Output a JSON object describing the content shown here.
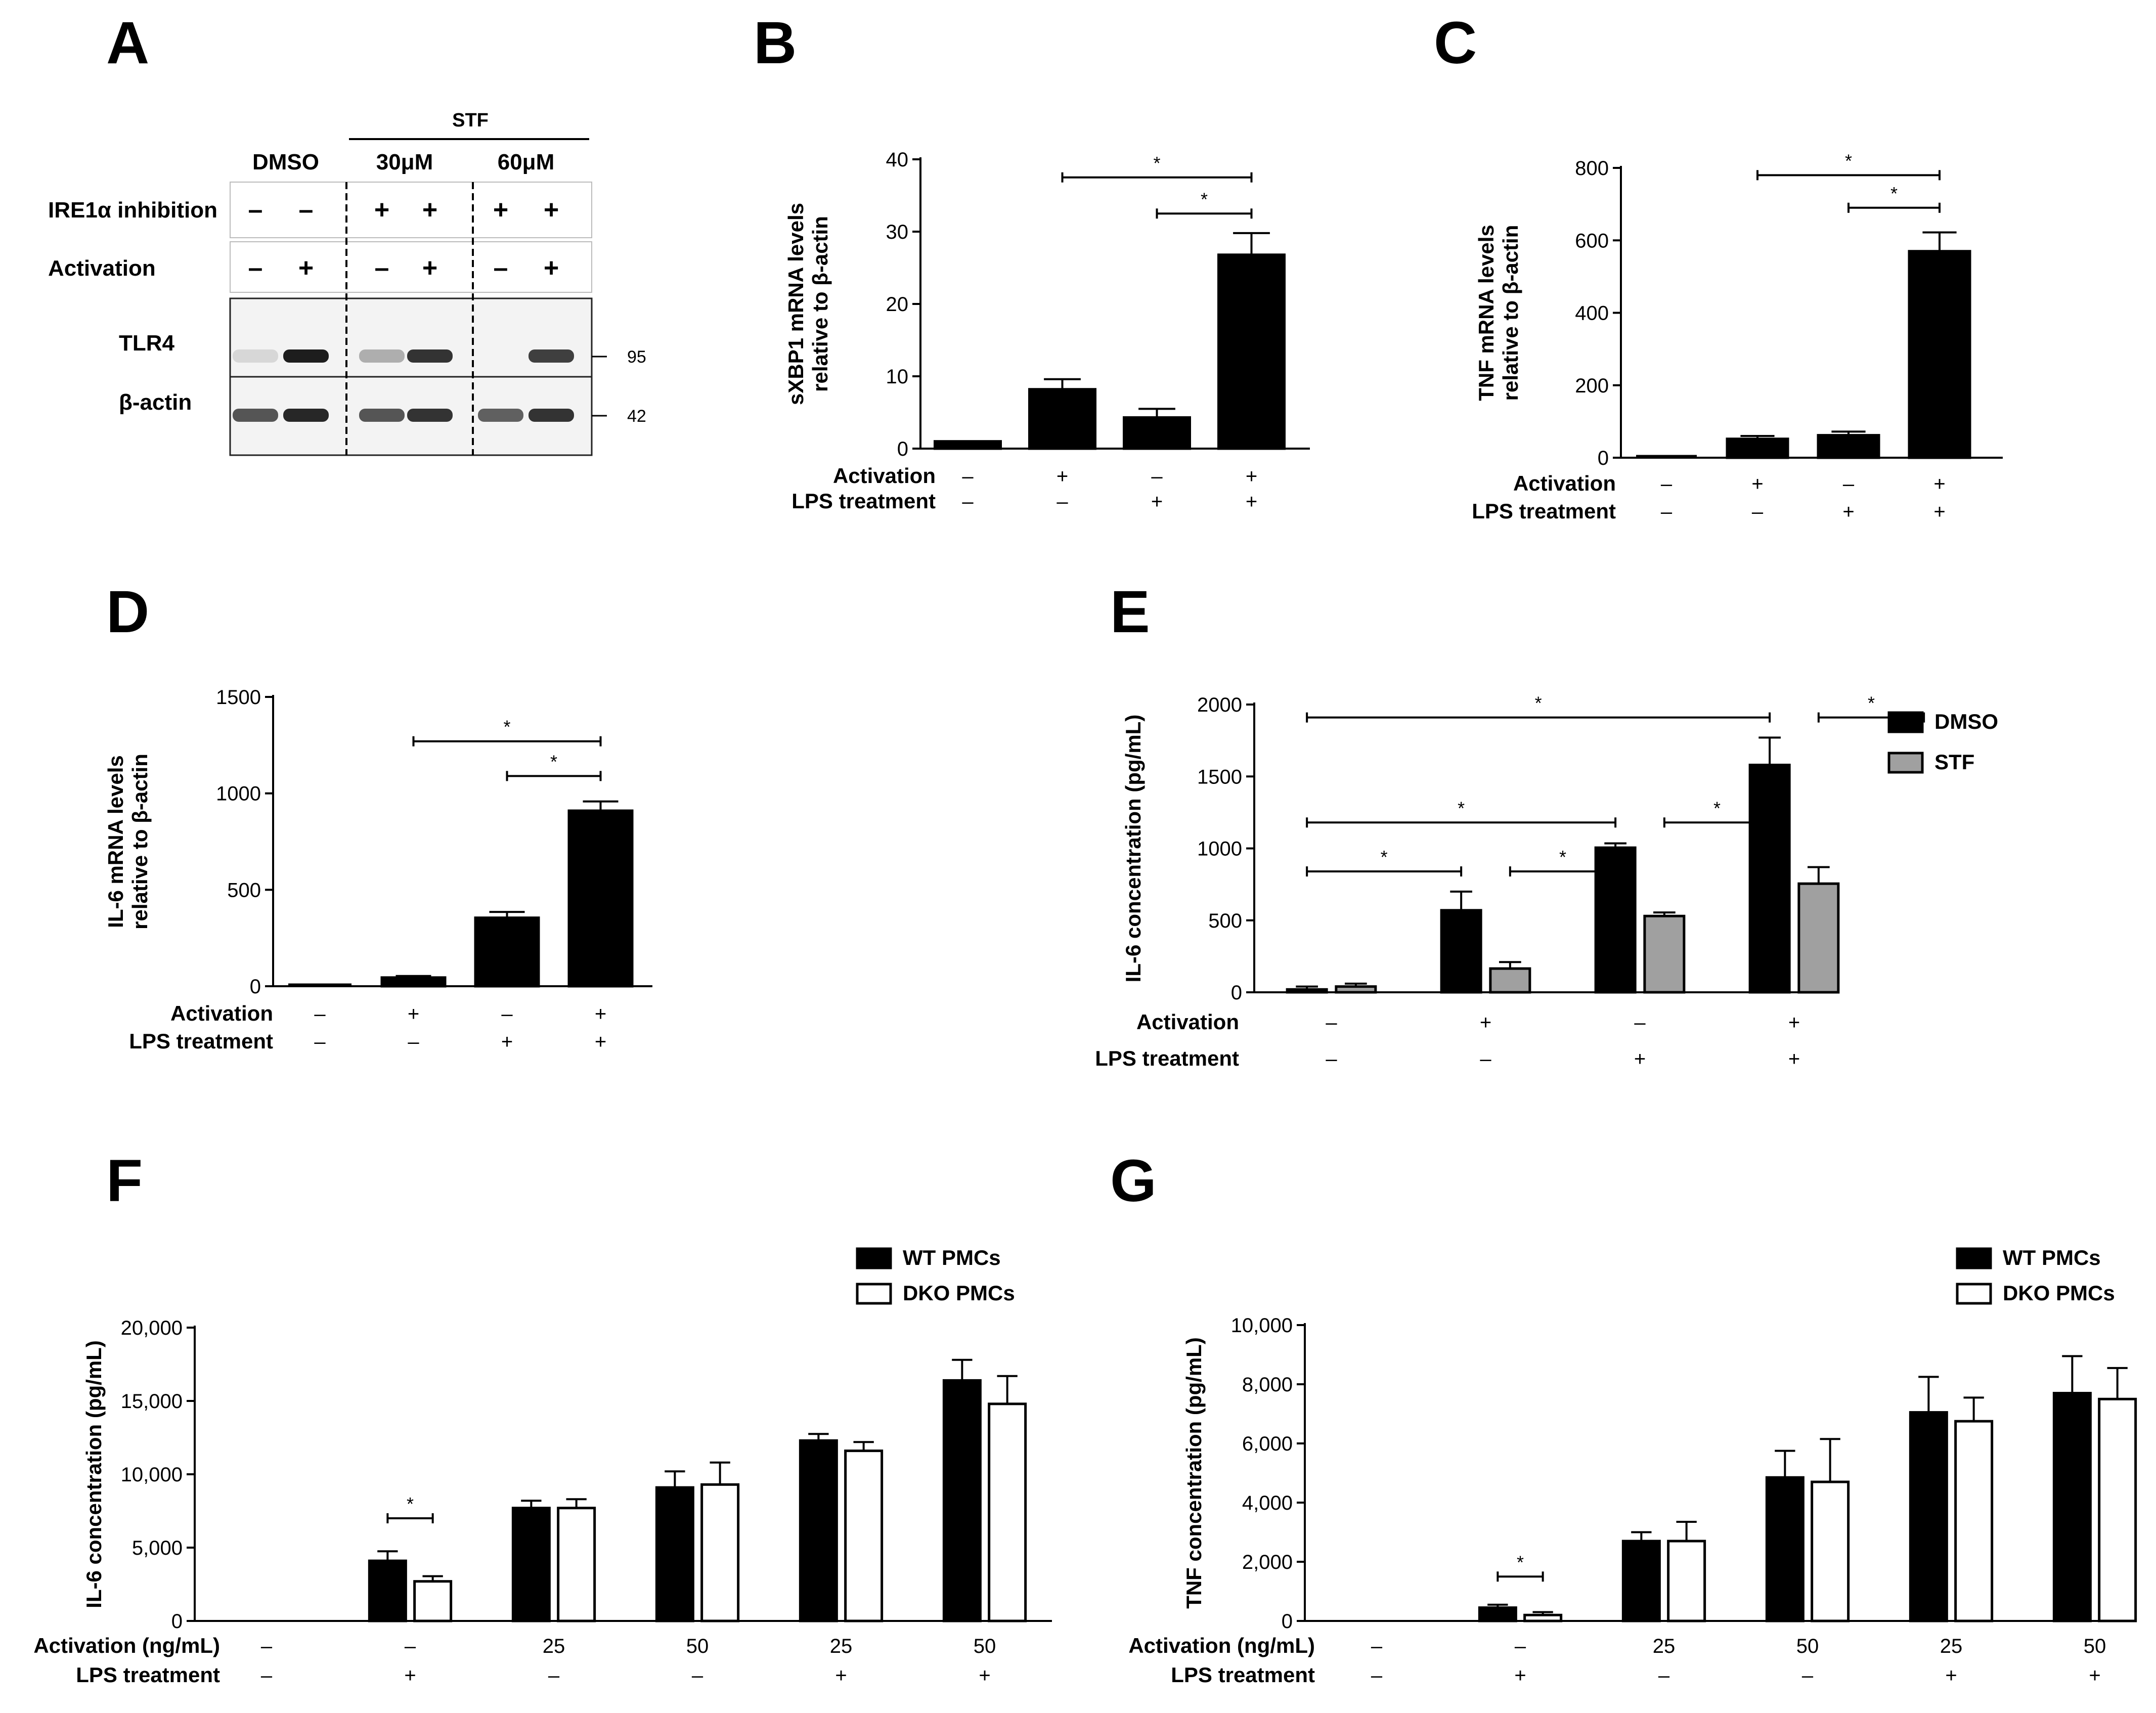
{
  "panel_letters": {
    "a": "A",
    "b": "B",
    "c": "C",
    "d": "D",
    "e": "E",
    "f": "F",
    "g": "G"
  },
  "chart_data": [
    {
      "id": "A",
      "type": "blot",
      "headers": {
        "group": "STF",
        "dmso": "DMSO",
        "c30": "30μM",
        "c60": "60μM"
      },
      "rows": [
        {
          "label": "IRE1α inhibition",
          "signs": [
            "–",
            "–",
            "+",
            "+",
            "+",
            "+"
          ]
        },
        {
          "label": "Activation",
          "signs": [
            "–",
            "+",
            "–",
            "+",
            "–",
            "+"
          ]
        }
      ],
      "bands": [
        {
          "label": "TLR4",
          "kda": "95",
          "intensity": [
            0.12,
            0.95,
            0.3,
            0.85,
            0,
            0.8
          ]
        },
        {
          "label": "β-actin",
          "kda": "42",
          "intensity": [
            0.7,
            0.9,
            0.7,
            0.85,
            0.65,
            0.85
          ]
        }
      ]
    },
    {
      "id": "B",
      "type": "bar",
      "ylabel": [
        "sXBP1 mRNA levels",
        "relative to β-actin"
      ],
      "ylim": [
        0,
        40
      ],
      "yticks": [
        "0",
        "10",
        "20",
        "30",
        "40"
      ],
      "values": [
        1,
        8.2,
        4.3,
        26.8
      ],
      "errors": [
        0,
        1.4,
        1.2,
        3
      ],
      "conditions": [
        {
          "label": "Activation",
          "signs": [
            "–",
            "+",
            "–",
            "+"
          ]
        },
        {
          "label": "LPS treatment",
          "signs": [
            "–",
            "–",
            "+",
            "+"
          ]
        }
      ],
      "sig": [
        {
          "from": 1,
          "to": 3,
          "y": 37.5,
          "label": "*"
        },
        {
          "from": 2,
          "to": 3,
          "y": 32.5,
          "label": "*"
        }
      ]
    },
    {
      "id": "C",
      "type": "bar",
      "ylabel": [
        "TNF mRNA levels",
        "relative to β-actin"
      ],
      "ylim": [
        0,
        800
      ],
      "yticks": [
        "0",
        "200",
        "400",
        "600",
        "800"
      ],
      "values": [
        0,
        52,
        62,
        570
      ],
      "errors": [
        0,
        8,
        10,
        52
      ],
      "conditions": [
        {
          "label": "Activation",
          "signs": [
            "–",
            "+",
            "–",
            "+"
          ]
        },
        {
          "label": "LPS treatment",
          "signs": [
            "–",
            "–",
            "+",
            "+"
          ]
        }
      ],
      "sig": [
        {
          "from": 1,
          "to": 3,
          "y": 780,
          "label": "*"
        },
        {
          "from": 2,
          "to": 3,
          "y": 690,
          "label": "*"
        }
      ]
    },
    {
      "id": "D",
      "type": "bar",
      "ylabel": [
        "IL-6 mRNA levels",
        "relative to β-actin"
      ],
      "ylim": [
        0,
        1500
      ],
      "yticks": [
        "0",
        "500",
        "1000",
        "1500"
      ],
      "values": [
        0,
        45,
        355,
        910
      ],
      "errors": [
        0,
        8,
        30,
        48
      ],
      "conditions": [
        {
          "label": "Activation",
          "signs": [
            "–",
            "+",
            "–",
            "+"
          ]
        },
        {
          "label": "LPS treatment",
          "signs": [
            "–",
            "–",
            "+",
            "+"
          ]
        }
      ],
      "sig": [
        {
          "from": 1,
          "to": 3,
          "y": 1270,
          "label": "*"
        },
        {
          "from": 2,
          "to": 3,
          "y": 1090,
          "label": "*"
        }
      ]
    },
    {
      "id": "E",
      "type": "bar",
      "ylabel": "IL-6 concentration (pg/mL)",
      "ylim": [
        0,
        2000
      ],
      "yticks": [
        "0",
        "500",
        "1000",
        "1500",
        "2000"
      ],
      "series": [
        {
          "name": "DMSO",
          "color": "#000000",
          "values": [
            20,
            570,
            1005,
            1580
          ],
          "errors": [
            20,
            130,
            30,
            190
          ]
        },
        {
          "name": "STF",
          "color": "#a0a0a0",
          "values": [
            40,
            165,
            530,
            755
          ],
          "errors": [
            20,
            45,
            25,
            115
          ]
        }
      ],
      "conditions": [
        {
          "label": "Activation",
          "signs": [
            "–",
            "+",
            "–",
            "+"
          ]
        },
        {
          "label": "LPS treatment",
          "signs": [
            "–",
            "–",
            "+",
            "+"
          ]
        }
      ],
      "sig": [
        {
          "from": 0,
          "to": 3,
          "y": 1910,
          "label": "*"
        },
        {
          "from": 3.5,
          "to": 4,
          "y": 1910,
          "label": "*"
        },
        {
          "from": 0,
          "to": 2,
          "y": 1180,
          "label": "*"
        },
        {
          "from": 2.5,
          "to": 3,
          "y": 1180,
          "label": "*"
        },
        {
          "from": 0,
          "to": 1,
          "y": 840,
          "label": "*"
        },
        {
          "from": 1.5,
          "to": 2,
          "y": 840,
          "label": "*"
        }
      ]
    },
    {
      "id": "F",
      "type": "bar",
      "ylabel": "IL-6 concentration (pg/mL)",
      "ylim": [
        0,
        20000
      ],
      "yticks": [
        "0",
        "5,000",
        "10,000",
        "15,000",
        "20,000"
      ],
      "series": [
        {
          "name": "WT PMCs",
          "color": "#000000",
          "values": [
            0,
            4100,
            7700,
            9100,
            12300,
            16400
          ],
          "errors": [
            0,
            650,
            500,
            1100,
            450,
            1400
          ]
        },
        {
          "name": "DKO PMCs",
          "color": "#ffffff",
          "values": [
            0,
            2700,
            7700,
            9300,
            11600,
            14800
          ],
          "errors": [
            0,
            350,
            600,
            1500,
            600,
            1900
          ]
        }
      ],
      "conditions": [
        {
          "label": "Activation (ng/mL)",
          "signs": [
            "–",
            "–",
            "25",
            "50",
            "25",
            "50"
          ]
        },
        {
          "label": "LPS treatment",
          "signs": [
            "–",
            "+",
            "–",
            "–",
            "+",
            "+"
          ]
        }
      ],
      "sig": [
        {
          "g": 1,
          "y": 7000,
          "label": "*"
        }
      ]
    },
    {
      "id": "G",
      "type": "bar",
      "ylabel": "TNF concentration (pg/mL)",
      "ylim": [
        0,
        10000
      ],
      "yticks": [
        "0",
        "2,000",
        "4,000",
        "6,000",
        "8,000",
        "10,000"
      ],
      "series": [
        {
          "name": "WT PMCs",
          "color": "#000000",
          "values": [
            0,
            450,
            2700,
            4850,
            7050,
            7700
          ],
          "errors": [
            0,
            100,
            300,
            900,
            1200,
            1250
          ]
        },
        {
          "name": "DKO PMCs",
          "color": "#ffffff",
          "values": [
            0,
            200,
            2700,
            4700,
            6750,
            7500
          ],
          "errors": [
            0,
            100,
            650,
            1450,
            800,
            1050
          ]
        }
      ],
      "conditions": [
        {
          "label": "Activation (ng/mL)",
          "signs": [
            "–",
            "–",
            "25",
            "50",
            "25",
            "50"
          ]
        },
        {
          "label": "LPS treatment",
          "signs": [
            "–",
            "+",
            "–",
            "–",
            "+",
            "+"
          ]
        }
      ],
      "sig": [
        {
          "g": 1,
          "y": 1500,
          "label": "*"
        }
      ]
    }
  ]
}
